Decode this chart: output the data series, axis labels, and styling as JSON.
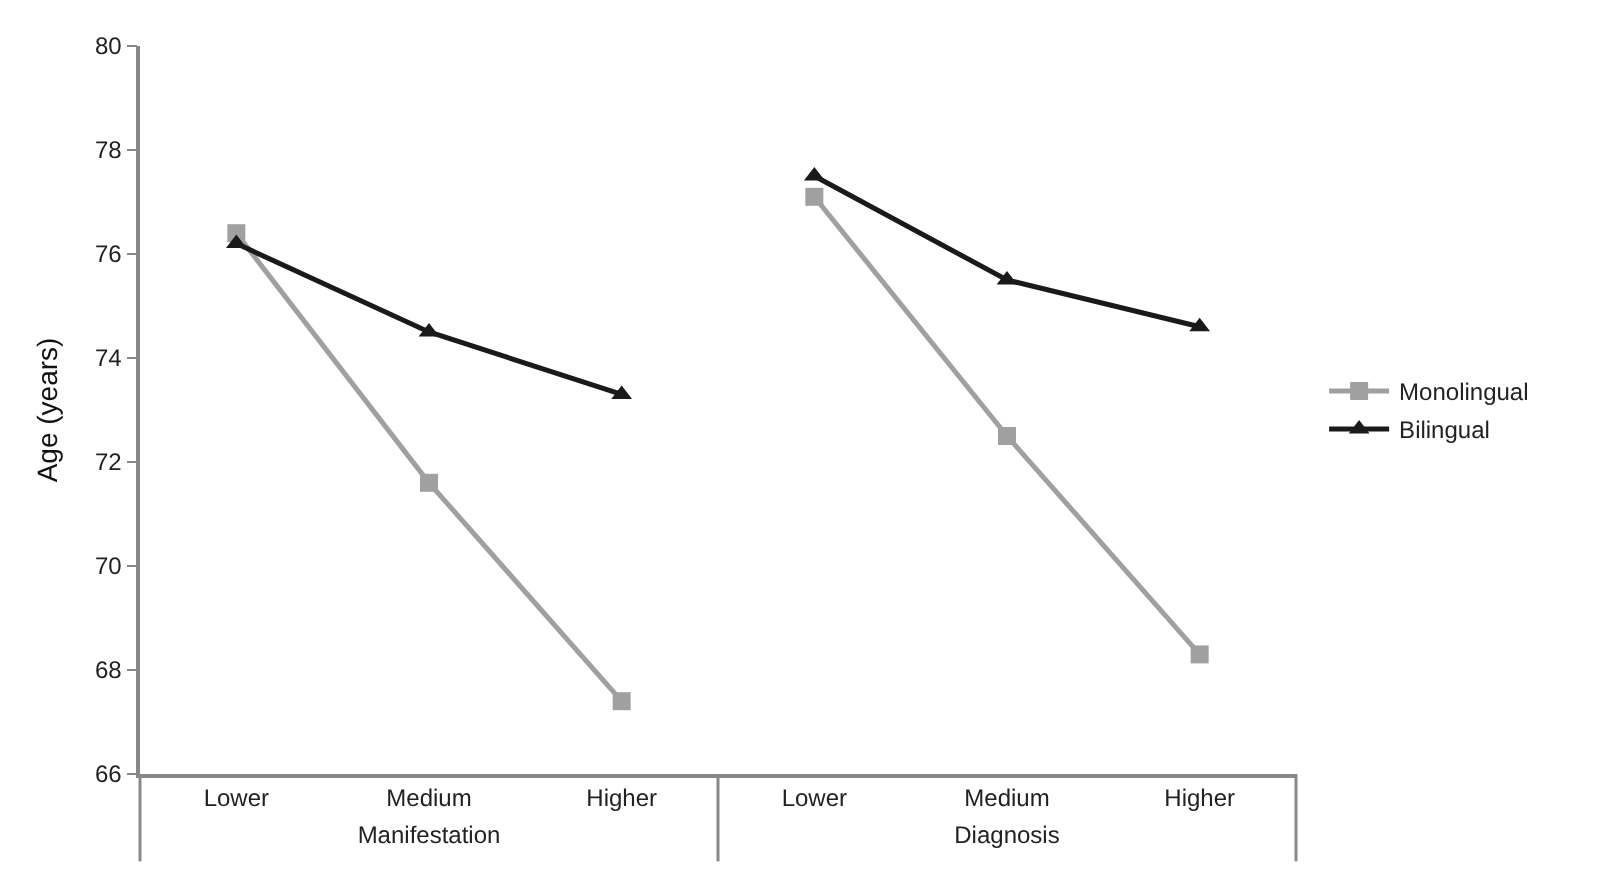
{
  "chart_data": [
    {
      "type": "line",
      "ylabel": "Age (years)",
      "xlabel": "Manifestation",
      "categories": [
        "Lower",
        "Medium",
        "Higher"
      ],
      "series": [
        {
          "name": "Monolingual",
          "color": "#a0a0a0",
          "marker": "square",
          "values": [
            76.4,
            71.6,
            67.4
          ]
        },
        {
          "name": "Bilingual",
          "color": "#1a1a1a",
          "marker": "triangle",
          "values": [
            76.2,
            74.5,
            73.3
          ]
        }
      ],
      "ylim": [
        66,
        80
      ],
      "yticks": [
        66,
        68,
        70,
        72,
        74,
        76,
        78,
        80
      ],
      "legend": "right"
    },
    {
      "type": "line",
      "xlabel": "Diagnosis",
      "categories": [
        "Lower",
        "Medium",
        "Higher"
      ],
      "series": [
        {
          "color": "#a0a0a0",
          "marker": "square",
          "values": [
            77.1,
            72.5,
            68.3
          ]
        },
        {
          "color": "#1a1a1a",
          "marker": "triangle",
          "values": [
            77.5,
            75.5,
            74.6
          ]
        }
      ],
      "ylim": [
        66,
        80
      ],
      "yticks": [
        66,
        68,
        70,
        72,
        74,
        76,
        78,
        80
      ],
      "legend": "right",
      "tick_labels": "x"
    }
  ]
}
